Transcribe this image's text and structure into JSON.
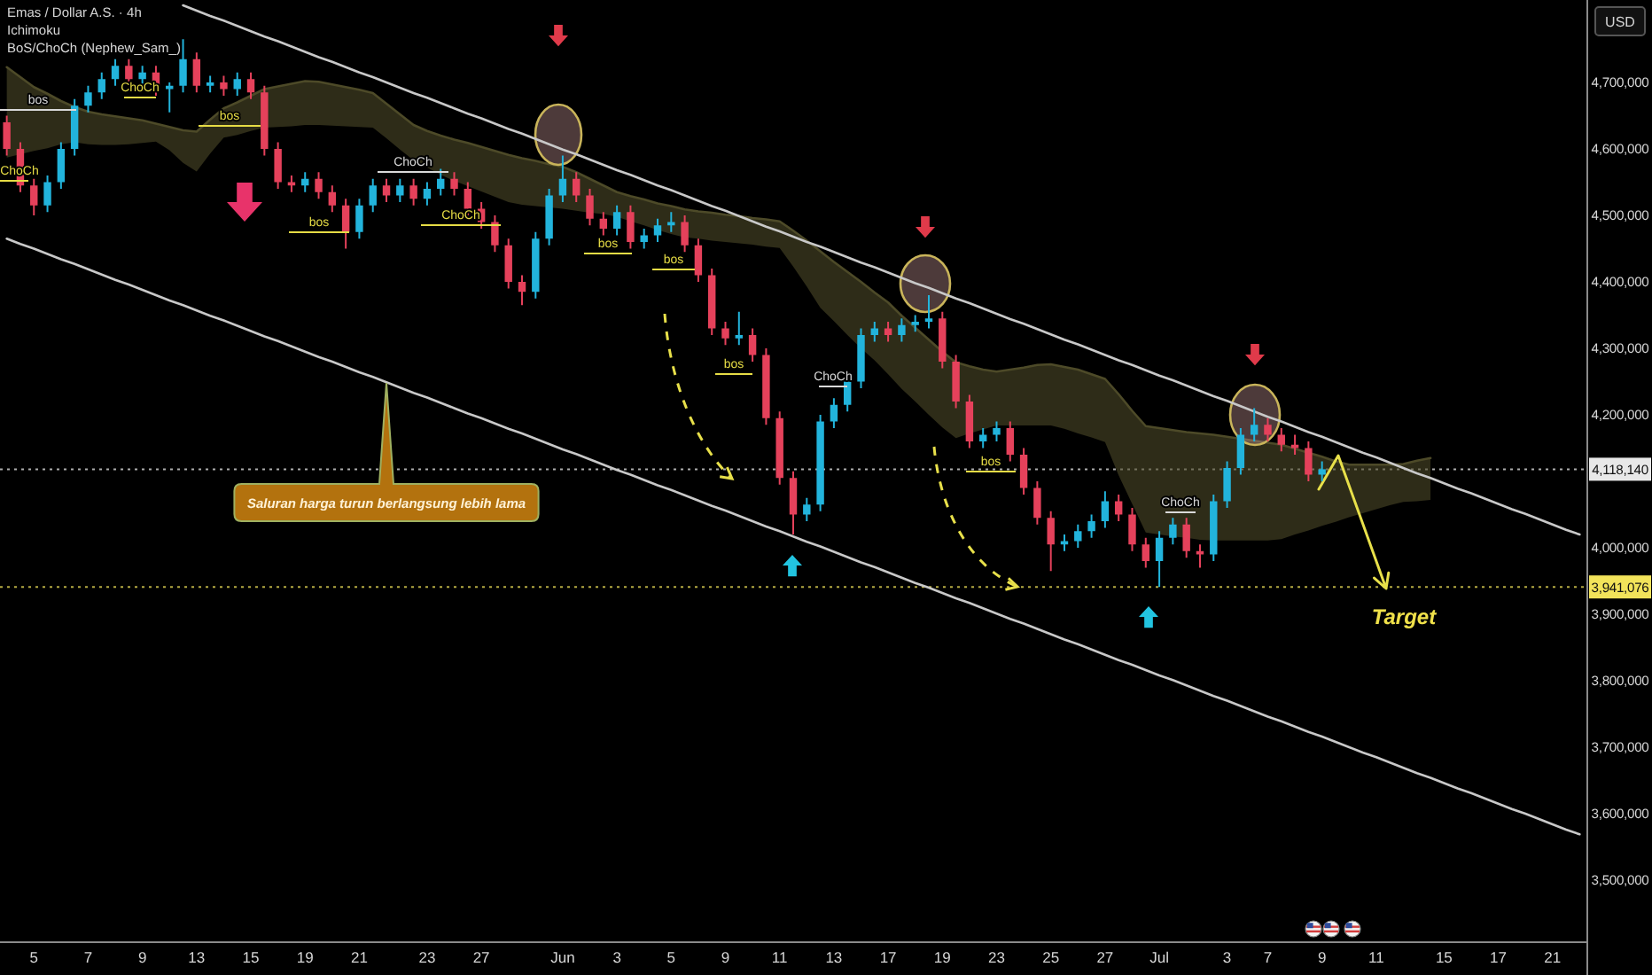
{
  "chart_data": {
    "type": "candlestick",
    "title": "Emas / Dollar A.S. · 4h",
    "ylabel": "USD",
    "categories": [
      null,
      null,
      "5",
      null,
      null,
      null,
      "7",
      null,
      null,
      null,
      "9",
      null,
      null,
      null,
      "13",
      null,
      null,
      null,
      "15",
      null,
      null,
      null,
      "19",
      null,
      null,
      null,
      "21",
      null,
      null,
      null,
      null,
      "23",
      null,
      null,
      null,
      "27",
      null,
      null,
      null,
      null,
      null,
      "Jun",
      null,
      null,
      null,
      "3",
      null,
      null,
      null,
      "5",
      null,
      null,
      null,
      "9",
      null,
      null,
      null,
      "11",
      null,
      null,
      null,
      "13",
      null,
      null,
      null,
      "17",
      null,
      null,
      null,
      "19",
      null,
      null,
      null,
      "23",
      null,
      null,
      null,
      "25",
      null,
      null,
      null,
      "27",
      null,
      null,
      null,
      "Jul",
      null,
      null,
      null,
      null,
      "3",
      null,
      null,
      "7",
      null,
      null,
      null,
      "9",
      null,
      null,
      null,
      "11",
      null,
      null,
      null,
      null,
      "15",
      null,
      null,
      null,
      "17",
      null,
      null,
      null,
      "21",
      null,
      null
    ],
    "ylim": [
      3408000,
      4824000
    ],
    "yticks": [
      {
        "value": 3500000,
        "label": "3,500,000"
      },
      {
        "value": 3600000,
        "label": "3,600,000"
      },
      {
        "value": 3700000,
        "label": "3,700,000"
      },
      {
        "value": 3800000,
        "label": "3,800,000"
      },
      {
        "value": 3900000,
        "label": "3,900,000"
      },
      {
        "value": 4000000,
        "label": "4,000,000"
      },
      {
        "value": 4200000,
        "label": "4,200,000"
      },
      {
        "value": 4300000,
        "label": "4,300,000"
      },
      {
        "value": 4400000,
        "label": "4,400,000"
      },
      {
        "value": 4500000,
        "label": "4,500,000"
      },
      {
        "value": 4600000,
        "label": "4,600,000"
      },
      {
        "value": 4700000,
        "label": "4,700,000"
      }
    ],
    "series": [
      {
        "type": "candlestick",
        "ohlc": [
          [
            4640000,
            4650000,
            4590000,
            4600000
          ],
          [
            4600000,
            4610000,
            4535000,
            4545000
          ],
          [
            4545000,
            4555000,
            4500000,
            4515000
          ],
          [
            4515000,
            4560000,
            4505000,
            4550000
          ],
          [
            4550000,
            4610000,
            4540000,
            4600000
          ],
          [
            4600000,
            4675000,
            4590000,
            4665000
          ],
          [
            4665000,
            4695000,
            4655000,
            4685000
          ],
          [
            4685000,
            4715000,
            4675000,
            4705000
          ],
          [
            4705000,
            4735000,
            4695000,
            4725000
          ],
          [
            4725000,
            4735000,
            4695000,
            4705000
          ],
          [
            4705000,
            4725000,
            4695000,
            4715000
          ],
          [
            4715000,
            4725000,
            4680000,
            4690000
          ],
          [
            4690000,
            4700000,
            4655000,
            4695000
          ],
          [
            4695000,
            4765000,
            4685000,
            4735000
          ],
          [
            4735000,
            4745000,
            4685000,
            4695000
          ],
          [
            4695000,
            4710000,
            4685000,
            4700000
          ],
          [
            4700000,
            4710000,
            4680000,
            4690000
          ],
          [
            4690000,
            4715000,
            4680000,
            4705000
          ],
          [
            4705000,
            4715000,
            4675000,
            4685000
          ],
          [
            4685000,
            4695000,
            4590000,
            4600000
          ],
          [
            4600000,
            4610000,
            4540000,
            4550000
          ],
          [
            4550000,
            4560000,
            4535000,
            4545000
          ],
          [
            4545000,
            4565000,
            4535000,
            4555000
          ],
          [
            4555000,
            4565000,
            4525000,
            4535000
          ],
          [
            4535000,
            4545000,
            4505000,
            4515000
          ],
          [
            4515000,
            4525000,
            4450000,
            4475000
          ],
          [
            4475000,
            4525000,
            4465000,
            4515000
          ],
          [
            4515000,
            4555000,
            4505000,
            4545000
          ],
          [
            4545000,
            4555000,
            4520000,
            4530000
          ],
          [
            4530000,
            4555000,
            4520000,
            4545000
          ],
          [
            4545000,
            4555000,
            4515000,
            4525000
          ],
          [
            4525000,
            4550000,
            4515000,
            4540000
          ],
          [
            4540000,
            4570000,
            4530000,
            4555000
          ],
          [
            4555000,
            4565000,
            4530000,
            4540000
          ],
          [
            4540000,
            4550000,
            4500000,
            4510000
          ],
          [
            4510000,
            4520000,
            4480000,
            4490000
          ],
          [
            4490000,
            4500000,
            4445000,
            4455000
          ],
          [
            4455000,
            4465000,
            4390000,
            4400000
          ],
          [
            4400000,
            4410000,
            4365000,
            4385000
          ],
          [
            4385000,
            4475000,
            4375000,
            4465000
          ],
          [
            4465000,
            4540000,
            4455000,
            4530000
          ],
          [
            4530000,
            4590000,
            4520000,
            4555000
          ],
          [
            4555000,
            4565000,
            4520000,
            4530000
          ],
          [
            4530000,
            4540000,
            4485000,
            4495000
          ],
          [
            4495000,
            4505000,
            4470000,
            4480000
          ],
          [
            4480000,
            4515000,
            4470000,
            4505000
          ],
          [
            4505000,
            4515000,
            4450000,
            4460000
          ],
          [
            4460000,
            4480000,
            4450000,
            4470000
          ],
          [
            4470000,
            4495000,
            4460000,
            4485000
          ],
          [
            4485000,
            4505000,
            4475000,
            4490000
          ],
          [
            4490000,
            4500000,
            4445000,
            4455000
          ],
          [
            4455000,
            4465000,
            4400000,
            4410000
          ],
          [
            4410000,
            4420000,
            4320000,
            4330000
          ],
          [
            4330000,
            4340000,
            4305000,
            4315000
          ],
          [
            4315000,
            4355000,
            4305000,
            4320000
          ],
          [
            4320000,
            4330000,
            4280000,
            4290000
          ],
          [
            4290000,
            4300000,
            4185000,
            4195000
          ],
          [
            4195000,
            4205000,
            4095000,
            4105000
          ],
          [
            4105000,
            4115000,
            4020000,
            4050000
          ],
          [
            4050000,
            4075000,
            4040000,
            4065000
          ],
          [
            4065000,
            4200000,
            4055000,
            4190000
          ],
          [
            4190000,
            4225000,
            4180000,
            4215000
          ],
          [
            4215000,
            4260000,
            4205000,
            4250000
          ],
          [
            4250000,
            4330000,
            4240000,
            4320000
          ],
          [
            4320000,
            4340000,
            4310000,
            4330000
          ],
          [
            4330000,
            4340000,
            4310000,
            4320000
          ],
          [
            4320000,
            4345000,
            4310000,
            4335000
          ],
          [
            4335000,
            4350000,
            4325000,
            4340000
          ],
          [
            4340000,
            4380000,
            4330000,
            4345000
          ],
          [
            4345000,
            4355000,
            4270000,
            4280000
          ],
          [
            4280000,
            4290000,
            4210000,
            4220000
          ],
          [
            4220000,
            4230000,
            4150000,
            4160000
          ],
          [
            4160000,
            4180000,
            4150000,
            4170000
          ],
          [
            4170000,
            4190000,
            4160000,
            4180000
          ],
          [
            4180000,
            4190000,
            4130000,
            4140000
          ],
          [
            4140000,
            4150000,
            4080000,
            4090000
          ],
          [
            4090000,
            4100000,
            4035000,
            4045000
          ],
          [
            4045000,
            4055000,
            3965000,
            4005000
          ],
          [
            4005000,
            4020000,
            3995000,
            4010000
          ],
          [
            4010000,
            4035000,
            4000000,
            4025000
          ],
          [
            4025000,
            4050000,
            4015000,
            4040000
          ],
          [
            4040000,
            4085000,
            4030000,
            4070000
          ],
          [
            4070000,
            4080000,
            4040000,
            4050000
          ],
          [
            4050000,
            4060000,
            3995000,
            4005000
          ],
          [
            4005000,
            4015000,
            3970000,
            3980000
          ],
          [
            3980000,
            4025000,
            3941076,
            4015000
          ],
          [
            4015000,
            4045000,
            4005000,
            4035000
          ],
          [
            4035000,
            4045000,
            3985000,
            3995000
          ],
          [
            3995000,
            4005000,
            3970000,
            3990000
          ],
          [
            3990000,
            4080000,
            3980000,
            4070000
          ],
          [
            4070000,
            4130000,
            4060000,
            4120000
          ],
          [
            4120000,
            4180000,
            4110000,
            4170000
          ],
          [
            4170000,
            4210000,
            4160000,
            4185000
          ],
          [
            4185000,
            4195000,
            4160000,
            4170000
          ],
          [
            4170000,
            4180000,
            4145000,
            4155000
          ],
          [
            4155000,
            4170000,
            4140000,
            4150000
          ],
          [
            4150000,
            4160000,
            4100000,
            4110000
          ],
          [
            4110000,
            4130000,
            4100000,
            4118140
          ],
          null,
          null,
          null,
          null,
          null,
          null,
          null,
          null,
          null,
          null,
          null,
          null,
          null,
          null,
          null,
          null,
          null,
          null,
          null
        ],
        "colors": [
          "#e5415b",
          "#e5415b",
          "#e5415b",
          "#22b4dc",
          "#22b4dc",
          "#22b4dc",
          "#22b4dc",
          "#22b4dc",
          "#22b4dc",
          "#e5415b",
          "#22b4dc",
          "#e5415b",
          "#22b4dc",
          "#22b4dc",
          "#e5415b",
          "#22b4dc",
          "#e5415b",
          "#22b4dc",
          "#e5415b",
          "#e5415b",
          "#e5415b",
          "#e5415b",
          "#22b4dc",
          "#e5415b",
          "#e5415b",
          "#e5415b",
          "#22b4dc",
          "#22b4dc",
          "#e5415b",
          "#22b4dc",
          "#e5415b",
          "#22b4dc",
          "#22b4dc",
          "#e5415b",
          "#e5415b",
          "#e5415b",
          "#e5415b",
          "#e5415b",
          "#e5415b",
          "#22b4dc",
          "#22b4dc",
          "#22b4dc",
          "#e5415b",
          "#e5415b",
          "#e5415b",
          "#22b4dc",
          "#e5415b",
          "#22b4dc",
          "#22b4dc",
          "#22b4dc",
          "#e5415b",
          "#e5415b",
          "#e5415b",
          "#e5415b",
          "#22b4dc",
          "#e5415b",
          "#e5415b",
          "#e5415b",
          "#e5415b",
          "#22b4dc",
          "#22b4dc",
          "#22b4dc",
          "#22b4dc",
          "#22b4dc",
          "#22b4dc",
          "#e5415b",
          "#22b4dc",
          "#22b4dc",
          "#22b4dc",
          "#e5415b",
          "#e5415b",
          "#e5415b",
          "#22b4dc",
          "#22b4dc",
          "#e5415b",
          "#e5415b",
          "#e5415b",
          "#e5415b",
          "#22b4dc",
          "#22b4dc",
          "#22b4dc",
          "#22b4dc",
          "#e5415b",
          "#e5415b",
          "#e5415b",
          "#22b4dc",
          "#22b4dc",
          "#e5415b",
          "#e5415b",
          "#22b4dc",
          "#22b4dc",
          "#22b4dc",
          "#22b4dc",
          "#e5415b",
          "#e5415b",
          "#e5415b",
          "#e5415b",
          "#22b4dc",
          null,
          null,
          null,
          null,
          null,
          null,
          null,
          null,
          null,
          null,
          null,
          null,
          null,
          null,
          null,
          null,
          null,
          null,
          null
        ]
      },
      {
        "type": "line",
        "color": "#c8c8c8",
        "values": [
          null,
          null,
          null,
          null,
          null,
          null,
          null,
          null,
          null,
          null,
          null,
          null,
          null,
          4816000,
          4808000,
          4800000,
          4793000,
          4785000,
          4777000,
          4769000,
          4762000,
          4754000,
          4746000,
          4738000,
          4731000,
          4723000,
          4715000,
          4708000,
          4700000,
          4692000,
          4684000,
          4677000,
          4669000,
          4661000,
          4653000,
          4646000,
          4638000,
          4630000,
          4623000,
          4615000,
          4607000,
          4599000,
          4592000,
          4584000,
          4576000,
          4568000,
          4561000,
          4553000,
          4545000,
          4538000,
          4530000,
          4522000,
          4514000,
          4507000,
          4499000,
          4491000,
          4483000,
          4476000,
          4468000,
          4460000,
          4453000,
          4445000,
          4437000,
          4429000,
          4422000,
          4414000,
          4406000,
          4398000,
          4391000,
          4383000,
          4375000,
          4368000,
          4360000,
          4352000,
          4344000,
          4337000,
          4329000,
          4321000,
          4313000,
          4306000,
          4298000,
          4290000,
          4282000,
          4275000,
          4267000,
          4259000,
          4252000,
          4244000,
          4236000,
          4228000,
          4221000,
          4213000,
          4205000,
          4197000,
          4190000,
          4182000,
          4174000,
          4167000,
          4159000,
          4151000,
          4143000,
          4136000,
          4128000,
          4120000,
          4112000,
          4105000,
          4097000,
          4089000,
          4082000,
          4074000,
          4066000,
          4058000,
          4051000,
          4043000,
          4035000,
          4027000,
          4020000
        ]
      },
      {
        "type": "line",
        "color": "#c8c8c8",
        "values": [
          4465000,
          4457000,
          4450000,
          4442000,
          4434000,
          4427000,
          4419000,
          4411000,
          4403000,
          4396000,
          4388000,
          4380000,
          4372000,
          4365000,
          4357000,
          4349000,
          4342000,
          4334000,
          4326000,
          4318000,
          4311000,
          4303000,
          4295000,
          4287000,
          4280000,
          4272000,
          4264000,
          4257000,
          4249000,
          4241000,
          4233000,
          4226000,
          4218000,
          4210000,
          4202000,
          4195000,
          4187000,
          4179000,
          4172000,
          4164000,
          4156000,
          4148000,
          4141000,
          4133000,
          4125000,
          4117000,
          4110000,
          4102000,
          4094000,
          4087000,
          4079000,
          4071000,
          4063000,
          4056000,
          4048000,
          4040000,
          4032000,
          4025000,
          4017000,
          4009000,
          4002000,
          3994000,
          3986000,
          3978000,
          3971000,
          3963000,
          3955000,
          3947000,
          3940000,
          3932000,
          3924000,
          3917000,
          3909000,
          3901000,
          3893000,
          3886000,
          3878000,
          3870000,
          3862000,
          3855000,
          3847000,
          3839000,
          3831000,
          3824000,
          3816000,
          3808000,
          3801000,
          3793000,
          3785000,
          3777000,
          3770000,
          3762000,
          3754000,
          3746000,
          3739000,
          3731000,
          3723000,
          3716000,
          3708000,
          3700000,
          3692000,
          3685000,
          3677000,
          3669000,
          3661000,
          3654000,
          3646000,
          3638000,
          3631000,
          3623000,
          3615000,
          3607000,
          3600000,
          3592000,
          3584000,
          3576000,
          3569000
        ]
      },
      {
        "type": "line",
        "color": "#4d4a28",
        "values": [
          4723000,
          4708000,
          4693000,
          4683000,
          4672000,
          4663000,
          4656000,
          4652000,
          4649000,
          4646000,
          4643000,
          4638000,
          4633000,
          4628000,
          4626000,
          4644000,
          4661000,
          4670000,
          4680000,
          4690000,
          4694000,
          4698000,
          4702000,
          4701000,
          4697000,
          4693000,
          4689000,
          4684000,
          4668000,
          4652000,
          4636000,
          4627000,
          4620000,
          4614000,
          4609000,
          4603000,
          4597000,
          4591000,
          4586000,
          4582000,
          4577000,
          4573000,
          4565000,
          4555000,
          4545000,
          4535000,
          4529000,
          4524000,
          4518000,
          4514000,
          4509000,
          4506000,
          4504000,
          4501000,
          4499000,
          4496000,
          4494000,
          4491000,
          4477000,
          4462000,
          4446000,
          4430000,
          4415000,
          4400000,
          4384000,
          4369000,
          4349000,
          4331000,
          4313000,
          4295000,
          4279000,
          4273000,
          4268000,
          4265000,
          4268000,
          4271000,
          4275000,
          4276000,
          4272000,
          4268000,
          4261000,
          4254000,
          4231000,
          4206000,
          4183000,
          4180000,
          4177000,
          4174000,
          4172000,
          4170000,
          4167000,
          4164000,
          4161000,
          4158000,
          4155000,
          4149000,
          4143000,
          4137000,
          4130000,
          4125000,
          4125000,
          4125000,
          4125000,
          4126000,
          4131000,
          4135000,
          null,
          null,
          null,
          null,
          null,
          null,
          null,
          null,
          null,
          null,
          null
        ],
        "upper": [
          4723000,
          4708000,
          4693000,
          4683000,
          4672000,
          4663000,
          4656000,
          4652000,
          4649000,
          4646000,
          4643000,
          4638000,
          4633000,
          4628000,
          4626000,
          4644000,
          4661000,
          4670000,
          4680000,
          4690000,
          4694000,
          4698000,
          4702000,
          4701000,
          4697000,
          4693000,
          4689000,
          4684000,
          4668000,
          4652000,
          4636000,
          4627000,
          4620000,
          4614000,
          4609000,
          4603000,
          4597000,
          4591000,
          4586000,
          4582000,
          4577000,
          4573000,
          4565000,
          4555000,
          4545000,
          4535000,
          4529000,
          4524000,
          4518000,
          4514000,
          4509000,
          4506000,
          4504000,
          4501000,
          4499000,
          4496000,
          4494000,
          4491000,
          4477000,
          4462000,
          4446000,
          4430000,
          4415000,
          4400000,
          4384000,
          4369000,
          4349000,
          4331000,
          4313000,
          4295000,
          4279000,
          4273000,
          4268000,
          4265000,
          4268000,
          4271000,
          4275000,
          4276000,
          4272000,
          4268000,
          4261000,
          4254000,
          4231000,
          4206000,
          4183000,
          4180000,
          4177000,
          4174000,
          4172000,
          4170000,
          4167000,
          4164000,
          4161000,
          4158000,
          4155000,
          4149000,
          4143000,
          4137000,
          4130000,
          4125000,
          4125000,
          4125000,
          4125000,
          4126000,
          4131000,
          4135000,
          null,
          null,
          null,
          null,
          null,
          null,
          null,
          null,
          null,
          null,
          null
        ],
        "lower": [
          4587000,
          4592000,
          4597000,
          4601000,
          4607000,
          4610000,
          4607000,
          4606000,
          4606000,
          4607000,
          4609000,
          4611000,
          4598000,
          4579000,
          4566000,
          4593000,
          4617000,
          4621000,
          4627000,
          4632000,
          4633000,
          4634000,
          4636000,
          4636000,
          4635000,
          4634000,
          4633000,
          4632000,
          4616000,
          4599000,
          4583000,
          4572000,
          4561000,
          4552000,
          4544000,
          4536000,
          4528000,
          4520000,
          4516000,
          4514000,
          4512000,
          4510000,
          4507000,
          4504000,
          4502000,
          4498000,
          4491000,
          4485000,
          4478000,
          4472000,
          4467000,
          4465000,
          4462000,
          4460000,
          4458000,
          4456000,
          4453000,
          4451000,
          4423000,
          4393000,
          4361000,
          4341000,
          4320000,
          4300000,
          4282000,
          4261000,
          4239000,
          4220000,
          4200000,
          4181000,
          4165000,
          4172000,
          4178000,
          4184000,
          4184000,
          4184000,
          4184000,
          4184000,
          4179000,
          4172000,
          4166000,
          4159000,
          4109000,
          4066000,
          4023000,
          4020000,
          4017000,
          4015000,
          4012000,
          4011000,
          4011000,
          4011000,
          4011000,
          4011000,
          4013000,
          4020000,
          4026000,
          4033000,
          4039000,
          4046000,
          4052000,
          4058000,
          4064000,
          4069000,
          4070000,
          4072000,
          null,
          null,
          null,
          null,
          null,
          null,
          null,
          null,
          null,
          null,
          null
        ]
      }
    ],
    "ref_lines": [
      {
        "axis": "y",
        "value": 4118140,
        "label": "4,118,140",
        "color": "#e8e8e8",
        "line_style": "dotted"
      },
      {
        "axis": "y",
        "value": 3941076,
        "label": "3,941,076",
        "color": "#f2e35a",
        "line_style": "dotted"
      }
    ],
    "annotations": [
      "Ichimoku",
      "BoS/ChoCh (Nephew_Sam_)",
      "bos",
      "ChoCh",
      "ChoCh",
      "bos",
      "bos",
      "ChoCh",
      "ChoCh",
      "bos",
      "bos",
      "bos",
      "ChoCh",
      "bos",
      "ChoCh",
      "Saluran harga turun berlangsung lebih lama",
      {
        "text": "Target",
        "y": 3941076
      }
    ]
  }
}
